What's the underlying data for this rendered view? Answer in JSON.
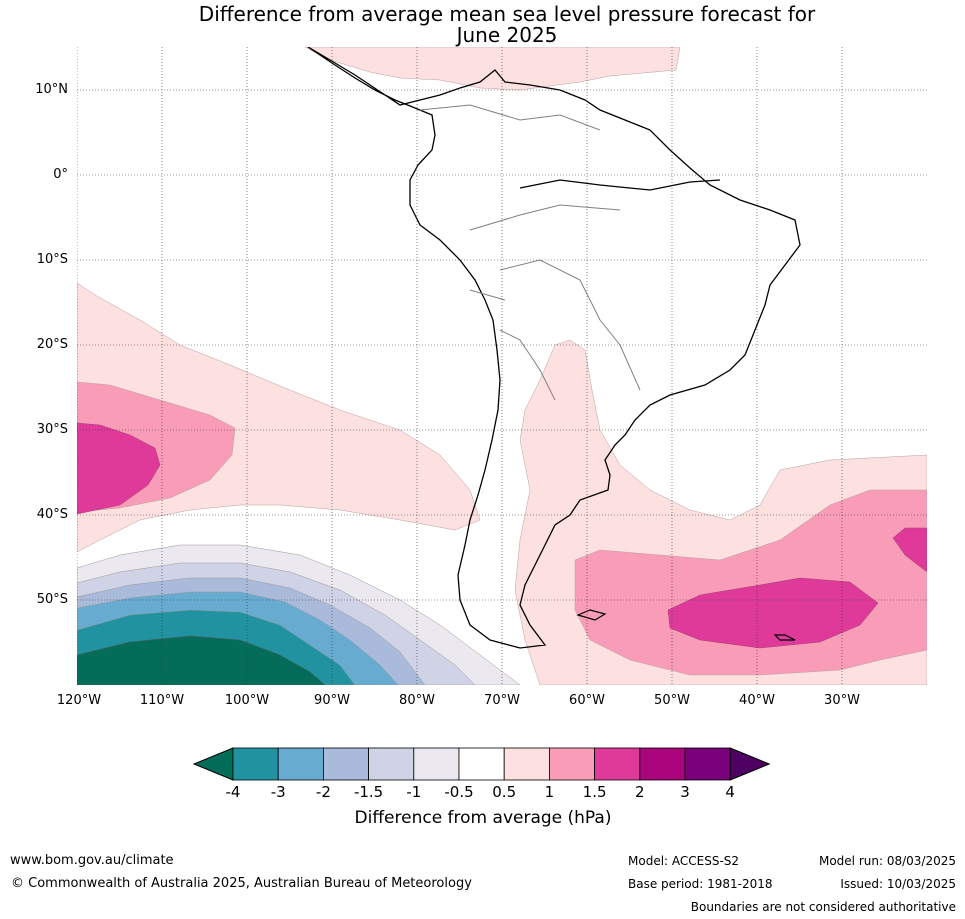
{
  "title": "Difference from average mean sea level pressure forecast for June 2025",
  "title_line1": "Difference from average mean sea level pressure forecast for",
  "title_line2": "June 2025",
  "lat_labels": [
    "10°N",
    "0°",
    "10°S",
    "20°S",
    "30°S",
    "40°S",
    "50°S"
  ],
  "lon_labels": [
    "120°W",
    "110°W",
    "100°W",
    "90°W",
    "80°W",
    "70°W",
    "60°W",
    "50°W",
    "40°W",
    "30°W"
  ],
  "colorbar": {
    "label": "Difference from average (hPa)",
    "ticks": [
      "-4",
      "-3",
      "-2",
      "-1.5",
      "-1",
      "-0.5",
      "0.5",
      "1",
      "1.5",
      "2",
      "3",
      "4"
    ],
    "colors": [
      "#046d59",
      "#2193a0",
      "#67abd1",
      "#a9badb",
      "#d0d2e6",
      "#ece8f0",
      "#ffffff",
      "#fde0e0",
      "#f99cb7",
      "#df3a9a",
      "#ab057e",
      "#7a0179",
      "#4d0062"
    ]
  },
  "footer": {
    "website": "www.bom.gov.au/climate",
    "copyright": "© Commonwealth of Australia 2025, Australian Bureau of Meteorology",
    "model": "Model: ACCESS-S2",
    "base_period": "Base period: 1981-2018",
    "model_run": "Model run: 08/03/2025",
    "issued": "Issued: 10/03/2025",
    "disclaimer": "Boundaries are not considered authoritative"
  }
}
